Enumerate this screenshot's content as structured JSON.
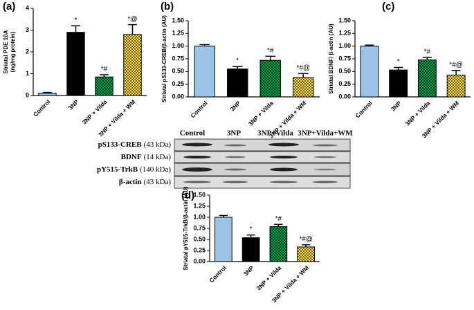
{
  "chart_data": [
    {
      "type": "bar",
      "label": "(a)",
      "ylabel": [
        "Striatal PDE 10A",
        "(ng/mg protein)"
      ],
      "categories": [
        "Control",
        "3NP",
        "3NP + Vilda",
        "3NP + Vilda + WM"
      ],
      "values": [
        0.1,
        2.9,
        0.85,
        2.8
      ],
      "errors": [
        0.04,
        0.3,
        0.1,
        0.45
      ],
      "annotations": [
        null,
        "*",
        "*#",
        "*@"
      ],
      "colors": [
        "#9dc3e6",
        "#000000",
        "#00a651",
        "#ffe45c"
      ],
      "ylim": [
        0,
        4
      ],
      "yticks": [
        0,
        1,
        2,
        3,
        4
      ]
    },
    {
      "type": "bar",
      "label": "(b)",
      "ylabel": [
        "Striatal pS133-CREB/β-actin (AU)"
      ],
      "categories": [
        "Control",
        "3NP",
        "3NP + Vilda",
        "3NP + Vilda + WM"
      ],
      "values": [
        1.0,
        0.55,
        0.72,
        0.38
      ],
      "errors": [
        0.03,
        0.05,
        0.08,
        0.08
      ],
      "annotations": [
        null,
        "*",
        "*#",
        "*#@"
      ],
      "colors": [
        "#9dc3e6",
        "#000000",
        "#00a651",
        "#ffe45c"
      ],
      "ylim": [
        0,
        1.5
      ],
      "yticks": [
        {
          "value": 0,
          "label": "0.00"
        },
        {
          "value": 0.25,
          "label": "0.25"
        },
        {
          "value": 0.5,
          "label": "0.50"
        },
        {
          "value": 0.75,
          "label": "0.75"
        },
        {
          "value": 1,
          "label": "1.00"
        },
        {
          "value": 1.25,
          "label": "1.25"
        },
        {
          "value": 1.5,
          "label": "1.50"
        }
      ]
    },
    {
      "type": "bar",
      "label": "(c)",
      "ylabel": [
        "Striatal BDNF/ β-actin (AU)"
      ],
      "categories": [
        "Control",
        "3NP",
        "3NP + Vilda",
        "3NP + Vilda + WM"
      ],
      "values": [
        1.0,
        0.53,
        0.73,
        0.43
      ],
      "errors": [
        0.02,
        0.05,
        0.05,
        0.09
      ],
      "annotations": [
        null,
        "*",
        "*#",
        "*#@"
      ],
      "colors": [
        "#9dc3e6",
        "#000000",
        "#00a651",
        "#ffe45c"
      ],
      "ylim": [
        0,
        1.5
      ],
      "yticks": [
        {
          "value": 0,
          "label": "0.00"
        },
        {
          "value": 0.25,
          "label": "0.25"
        },
        {
          "value": 0.5,
          "label": "0.50"
        },
        {
          "value": 0.75,
          "label": "0.75"
        },
        {
          "value": 1,
          "label": "1.00"
        },
        {
          "value": 1.25,
          "label": "1.25"
        },
        {
          "value": 1.5,
          "label": "1.50"
        }
      ]
    },
    {
      "type": "bar",
      "label": "(d)",
      "ylabel": [
        "Striatal pY515-TrkB/β-actin (AU)"
      ],
      "categories": [
        "Control",
        "3NP",
        "3NP + Vilda",
        "3NP + Vilda + WM"
      ],
      "values": [
        1.0,
        0.54,
        0.79,
        0.33
      ],
      "errors": [
        0.04,
        0.06,
        0.05,
        0.05
      ],
      "annotations": [
        null,
        "*",
        "*#",
        "*#@"
      ],
      "colors": [
        "#9dc3e6",
        "#000000",
        "#00a651",
        "#ffe45c"
      ],
      "ylim": [
        0,
        1.5
      ],
      "yticks": [
        {
          "value": 0,
          "label": "0.00"
        },
        {
          "value": 0.25,
          "label": "0.25"
        },
        {
          "value": 0.5,
          "label": "0.50"
        },
        {
          "value": 0.75,
          "label": "0.75"
        },
        {
          "value": 1,
          "label": "1.00"
        },
        {
          "value": 1.25,
          "label": "1.25"
        },
        {
          "value": 1.5,
          "label": "1.50"
        }
      ]
    }
  ],
  "blot": {
    "columns": [
      "Control",
      "3NP",
      "3NP+Vilda",
      "3NP+Vilda+WM"
    ],
    "rows": [
      {
        "name": "pS133-CREB",
        "size": "(43 kDa)"
      },
      {
        "name": "BDNF",
        "size": "(14 kDa)"
      },
      {
        "name": "pY515-TrkB",
        "size": "(140 kDa)"
      },
      {
        "name": "β-actin",
        "size": "(43 kDa)"
      }
    ]
  }
}
